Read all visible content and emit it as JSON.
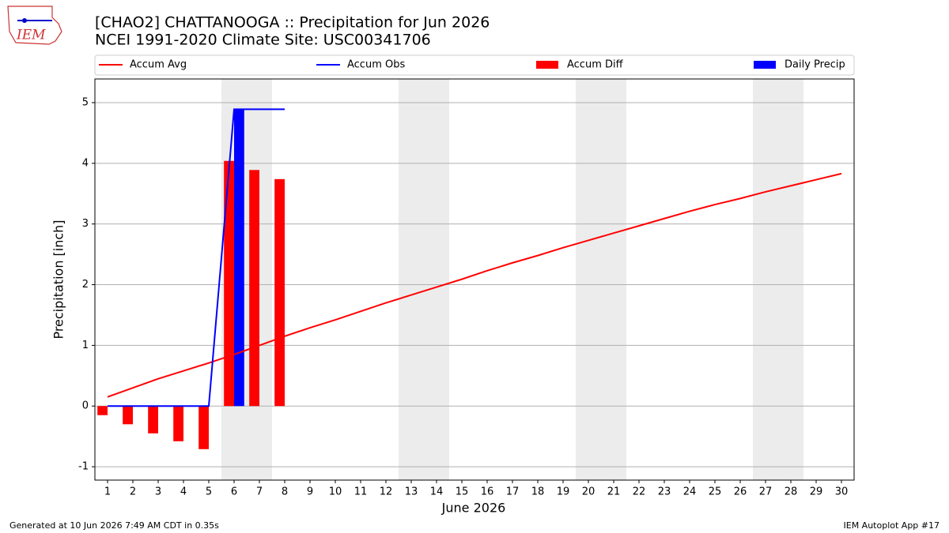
{
  "chart_data": {
    "type": "combo",
    "title": "[CHAO2] CHATTANOOGA :: Precipitation for Jun 2026",
    "subtitle": "NCEI 1991-2020 Climate Site: USC00341706",
    "logo": "IEM",
    "xlabel": "June 2026",
    "ylabel": "Precipitation [inch]",
    "footer_left": "Generated at 10 Jun 2026 7:49 AM CDT in 0.35s",
    "footer_right": "IEM Autoplot App #17",
    "x": [
      1,
      2,
      3,
      4,
      5,
      6,
      7,
      8,
      9,
      10,
      11,
      12,
      13,
      14,
      15,
      16,
      17,
      18,
      19,
      20,
      21,
      22,
      23,
      24,
      25,
      26,
      27,
      28,
      29,
      30
    ],
    "xlim": [
      0.5,
      30.5
    ],
    "xticks": [
      1,
      2,
      3,
      4,
      5,
      6,
      7,
      8,
      9,
      10,
      11,
      12,
      13,
      14,
      15,
      16,
      17,
      18,
      19,
      20,
      21,
      22,
      23,
      24,
      25,
      26,
      27,
      28,
      29,
      30
    ],
    "ylim": [
      -1.22,
      5.39
    ],
    "yticks": [
      -1,
      0,
      1,
      2,
      3,
      4,
      5
    ],
    "grid": true,
    "weekend_spans": [
      [
        5.5,
        7.5
      ],
      [
        12.5,
        14.5
      ],
      [
        19.5,
        21.5
      ],
      [
        26.5,
        28.5
      ]
    ],
    "series": [
      {
        "name": "Accum Avg",
        "type": "line",
        "color": "#ff0000",
        "values": [
          0.15,
          0.3,
          0.45,
          0.58,
          0.71,
          0.85,
          1.0,
          1.15,
          1.29,
          1.42,
          1.56,
          1.7,
          1.83,
          1.96,
          2.09,
          2.23,
          2.36,
          2.48,
          2.61,
          2.73,
          2.85,
          2.97,
          3.09,
          3.21,
          3.32,
          3.42,
          3.53,
          3.63,
          3.73,
          3.83
        ]
      },
      {
        "name": "Accum Obs",
        "type": "line",
        "color": "#0000ff",
        "values": [
          0,
          0,
          0,
          0,
          0,
          4.89,
          4.89,
          4.89,
          null,
          null,
          null,
          null,
          null,
          null,
          null,
          null,
          null,
          null,
          null,
          null,
          null,
          null,
          null,
          null,
          null,
          null,
          null,
          null,
          null,
          null
        ]
      },
      {
        "name": "Accum Diff",
        "type": "bar",
        "color": "#ff0000",
        "values": [
          -0.15,
          -0.3,
          -0.45,
          -0.58,
          -0.71,
          4.04,
          3.89,
          3.74,
          null,
          null,
          null,
          null,
          null,
          null,
          null,
          null,
          null,
          null,
          null,
          null,
          null,
          null,
          null,
          null,
          null,
          null,
          null,
          null,
          null,
          null
        ]
      },
      {
        "name": "Daily Precip",
        "type": "bar",
        "color": "#0000ff",
        "values": [
          0,
          0,
          0,
          0,
          0,
          4.89,
          0,
          0,
          null,
          null,
          null,
          null,
          null,
          null,
          null,
          null,
          null,
          null,
          null,
          null,
          null,
          null,
          null,
          null,
          null,
          null,
          null,
          null,
          null,
          null
        ]
      }
    ]
  }
}
